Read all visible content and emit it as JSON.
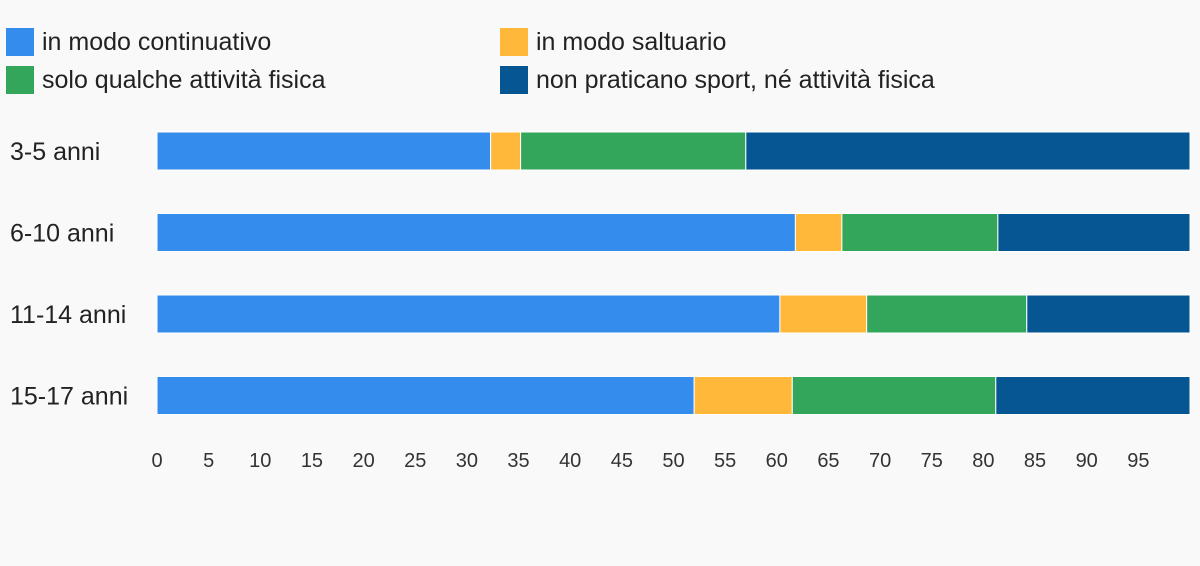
{
  "chart_data": {
    "type": "bar",
    "orientation": "horizontal",
    "stacked": true,
    "title": "",
    "xlabel": "",
    "ylabel": "",
    "categories": [
      "3-5 anni",
      "6-10 anni",
      "11-14 anni",
      "15-17 anni"
    ],
    "series": [
      {
        "name": "in modo continuativo",
        "color": "#348ced",
        "values": [
          32.3,
          61.8,
          60.3,
          52.0
        ]
      },
      {
        "name": "in modo saltuario",
        "color": "#ffb83a",
        "values": [
          2.9,
          4.5,
          8.4,
          9.5
        ]
      },
      {
        "name": "solo qualche attività fisica",
        "color": "#33a65c",
        "values": [
          21.8,
          15.1,
          15.5,
          19.7
        ]
      },
      {
        "name": "non praticano sport, né attività fisica",
        "color": "#055693",
        "values": [
          43.0,
          18.6,
          15.8,
          18.8
        ]
      }
    ],
    "x_ticks": [
      0,
      5,
      10,
      15,
      20,
      25,
      30,
      35,
      40,
      45,
      50,
      55,
      60,
      65,
      70,
      75,
      80,
      85,
      90,
      95
    ],
    "xlim": [
      0,
      100
    ],
    "grid": false,
    "legend_position": "top"
  }
}
